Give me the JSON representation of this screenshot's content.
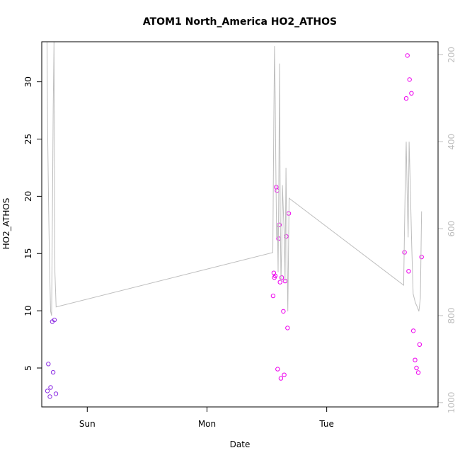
{
  "chart_data": {
    "type": "scatter",
    "title": "ATOM1 North_America HO2_ATHOS",
    "xlabel": "Date",
    "ylabel": "HO2_ATHOS",
    "x_ticks": [
      {
        "label": "Sun",
        "value": 1.0
      },
      {
        "label": "Mon",
        "value": 2.0
      },
      {
        "label": "Tue",
        "value": 3.0
      }
    ],
    "xlim": [
      0.62,
      3.93
    ],
    "ylim": [
      1.6,
      33.5
    ],
    "y_ticks": [
      5,
      10,
      15,
      20,
      25,
      30
    ],
    "y2_ticks": [
      200,
      400,
      600,
      800,
      1000
    ],
    "y2lim": [
      1010,
      170
    ],
    "grid": false,
    "colors": {
      "frame": "#000000",
      "line": "#bebebe",
      "right_axis": "#bebebe",
      "point_early": "#8a2be2",
      "point_late": "#ee00ee"
    },
    "series": [
      {
        "type": "points",
        "color_key": "point_early",
        "points": [
          [
            0.667,
            3.0
          ],
          [
            0.675,
            5.35
          ],
          [
            0.688,
            2.5
          ],
          [
            0.694,
            3.3
          ],
          [
            0.708,
            9.05
          ],
          [
            0.715,
            4.62
          ],
          [
            0.726,
            9.2
          ],
          [
            0.738,
            2.75
          ]
        ]
      },
      {
        "type": "points",
        "color_key": "point_late",
        "points": [
          [
            2.552,
            11.3
          ],
          [
            2.558,
            13.3
          ],
          [
            2.563,
            12.9
          ],
          [
            2.57,
            13.05
          ],
          [
            2.578,
            20.8
          ],
          [
            2.585,
            20.5
          ],
          [
            2.59,
            4.9
          ],
          [
            2.598,
            16.3
          ],
          [
            2.604,
            17.5
          ],
          [
            2.61,
            12.5
          ],
          [
            2.617,
            4.1
          ],
          [
            2.624,
            12.9
          ],
          [
            2.638,
            9.95
          ],
          [
            2.645,
            4.4
          ],
          [
            2.652,
            12.6
          ],
          [
            2.663,
            16.5
          ],
          [
            2.673,
            8.5
          ],
          [
            2.683,
            18.5
          ],
          [
            3.65,
            15.1
          ],
          [
            3.664,
            28.55
          ],
          [
            3.674,
            32.3
          ],
          [
            3.684,
            13.45
          ],
          [
            3.692,
            30.2
          ],
          [
            3.708,
            29.0
          ],
          [
            3.724,
            8.25
          ],
          [
            3.738,
            5.7
          ],
          [
            3.75,
            5.0
          ],
          [
            3.765,
            4.6
          ],
          [
            3.776,
            7.05
          ],
          [
            3.792,
            14.7
          ]
        ]
      },
      {
        "type": "line",
        "color_key": "line",
        "axis": "right",
        "points": [
          [
            0.664,
            170
          ],
          [
            0.67,
            400
          ],
          [
            0.678,
            560
          ],
          [
            0.686,
            700
          ],
          [
            0.694,
            790
          ],
          [
            0.702,
            800
          ],
          [
            0.709,
            560
          ],
          [
            0.716,
            320
          ],
          [
            0.722,
            170
          ],
          [
            0.73,
            700
          ],
          [
            0.74,
            780
          ],
          [
            2.55,
            655
          ],
          [
            2.558,
            350
          ],
          [
            2.564,
            180
          ],
          [
            2.57,
            300
          ],
          [
            2.576,
            480
          ],
          [
            2.582,
            620
          ],
          [
            2.588,
            590
          ],
          [
            2.594,
            700
          ],
          [
            2.6,
            500
          ],
          [
            2.606,
            220
          ],
          [
            2.612,
            560
          ],
          [
            2.618,
            720
          ],
          [
            2.624,
            650
          ],
          [
            2.63,
            500
          ],
          [
            2.638,
            560
          ],
          [
            2.645,
            610
          ],
          [
            2.652,
            720
          ],
          [
            2.66,
            460
          ],
          [
            2.667,
            610
          ],
          [
            2.675,
            790
          ],
          [
            2.68,
            680
          ],
          [
            2.686,
            530
          ],
          [
            3.643,
            730
          ],
          [
            3.65,
            600
          ],
          [
            3.657,
            480
          ],
          [
            3.664,
            400
          ],
          [
            3.672,
            520
          ],
          [
            3.68,
            620
          ],
          [
            3.688,
            400
          ],
          [
            3.696,
            480
          ],
          [
            3.71,
            640
          ],
          [
            3.722,
            750
          ],
          [
            3.74,
            770
          ],
          [
            3.756,
            780
          ],
          [
            3.77,
            790
          ],
          [
            3.782,
            760
          ],
          [
            3.792,
            560
          ]
        ]
      }
    ]
  }
}
